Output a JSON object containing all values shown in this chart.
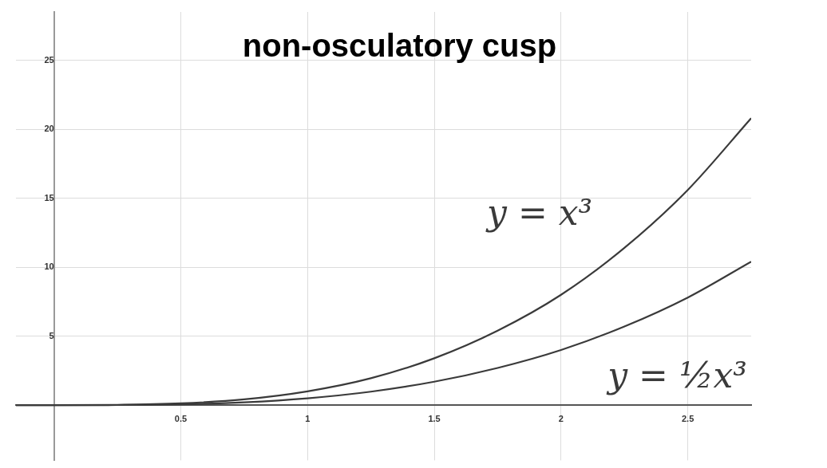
{
  "chart_data": {
    "type": "line",
    "title": "non-osculatory cusp",
    "x": [
      -0.15,
      0,
      0.25,
      0.5,
      0.75,
      1,
      1.25,
      1.5,
      1.75,
      2,
      2.25,
      2.5,
      2.75
    ],
    "series": [
      {
        "name": "y = x³",
        "color": "#3a3a3a",
        "values": [
          0,
          0,
          0.02,
          0.13,
          0.42,
          1,
          1.95,
          3.4,
          5.4,
          8,
          11.4,
          15.6,
          20.8
        ]
      },
      {
        "name": "y = ½x³",
        "color": "#3a3a3a",
        "values": [
          0,
          0,
          0.01,
          0.06,
          0.21,
          0.5,
          0.98,
          1.7,
          2.7,
          4,
          5.7,
          7.8,
          10.4
        ]
      }
    ],
    "xlim": [
      -0.15,
      2.75
    ],
    "xticks": [
      0.5,
      1,
      1.5,
      2,
      2.5
    ],
    "ylim": [
      -4,
      28.5
    ],
    "yticks": [
      5,
      10,
      15,
      20,
      25
    ],
    "grid": true,
    "legend": false,
    "marker": "none",
    "line_style": "solid"
  }
}
